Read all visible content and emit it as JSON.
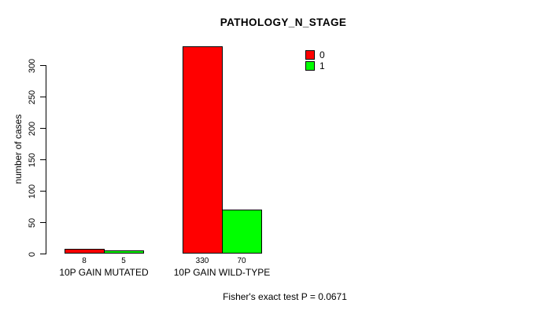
{
  "chart_data": {
    "type": "bar",
    "title": "PATHOLOGY_N_STAGE",
    "ylabel": "number of cases",
    "xlabel": "",
    "categories": [
      "10P GAIN MUTATED",
      "10P GAIN WILD-TYPE"
    ],
    "series": [
      {
        "name": "0",
        "color": "#FF0000",
        "values": [
          8,
          330
        ]
      },
      {
        "name": "1",
        "color": "#00FF00",
        "values": [
          5,
          70
        ]
      }
    ],
    "bar_value_labels": [
      [
        "8",
        "330"
      ],
      [
        "5",
        "70"
      ]
    ],
    "yticks": [
      0,
      50,
      100,
      150,
      200,
      250,
      300
    ],
    "ylim": [
      0,
      330
    ],
    "grid": false,
    "legend_position": "top-right",
    "annotation": "Fisher's exact test P = 0.0671"
  },
  "icons": {
    "legend_swatch_red": "red-swatch",
    "legend_swatch_green": "green-swatch"
  }
}
